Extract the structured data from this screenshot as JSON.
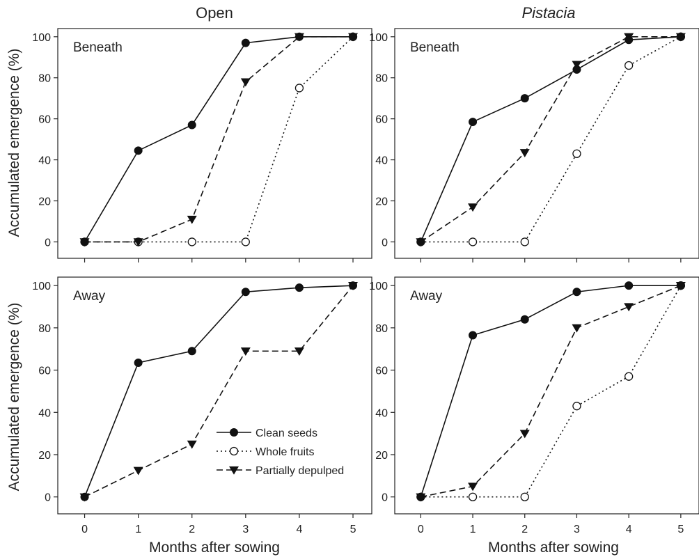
{
  "figure": {
    "columns": [
      "Open",
      "Pistacia"
    ],
    "column_italic": [
      false,
      true
    ],
    "ylabel": "Accumulated emergence (%)",
    "xlabel": "Months after sowing"
  },
  "legend": {
    "items": [
      {
        "key": "clean",
        "label": "Clean seeds"
      },
      {
        "key": "whole",
        "label": "Whole fruits"
      },
      {
        "key": "partial",
        "label": "Partially depulped"
      }
    ]
  },
  "chart_data": [
    {
      "type": "line",
      "column": "Open",
      "panel_label": "Beneath",
      "xlim": [
        -0.5,
        5.35
      ],
      "ylim": [
        -8,
        104
      ],
      "xticks": [
        0,
        1,
        2,
        3,
        4,
        5
      ],
      "yticks": [
        0,
        20,
        40,
        60,
        80,
        100
      ],
      "x": [
        0,
        1,
        2,
        3,
        4,
        5
      ],
      "series": [
        {
          "key": "clean",
          "name": "Clean seeds",
          "values": [
            0,
            44.5,
            57,
            97,
            100,
            100
          ]
        },
        {
          "key": "whole",
          "name": "Whole fruits",
          "values": [
            0,
            0,
            0,
            0,
            75,
            100
          ]
        },
        {
          "key": "partial",
          "name": "Partially depulped",
          "values": [
            0,
            0,
            11,
            78,
            100,
            100
          ]
        }
      ]
    },
    {
      "type": "line",
      "column": "Pistacia",
      "panel_label": "Beneath",
      "xlim": [
        -0.5,
        5.35
      ],
      "ylim": [
        -8,
        104
      ],
      "xticks": [
        0,
        1,
        2,
        3,
        4,
        5
      ],
      "yticks": [
        0,
        20,
        40,
        60,
        80,
        100
      ],
      "x": [
        0,
        1,
        2,
        3,
        4,
        5
      ],
      "series": [
        {
          "key": "clean",
          "name": "Clean seeds",
          "values": [
            0,
            58.5,
            70,
            84,
            98.5,
            100
          ]
        },
        {
          "key": "whole",
          "name": "Whole fruits",
          "values": [
            0,
            0,
            0,
            43,
            86,
            100
          ]
        },
        {
          "key": "partial",
          "name": "Partially depulped",
          "values": [
            0,
            17,
            43.5,
            86.5,
            100,
            100
          ]
        }
      ]
    },
    {
      "type": "line",
      "column": "Open",
      "panel_label": "Away",
      "xlim": [
        -0.5,
        5.35
      ],
      "ylim": [
        -8,
        104
      ],
      "xticks": [
        0,
        1,
        2,
        3,
        4,
        5
      ],
      "yticks": [
        0,
        20,
        40,
        60,
        80,
        100
      ],
      "x": [
        0,
        1,
        2,
        3,
        4,
        5
      ],
      "legend": "bottom-right",
      "series": [
        {
          "key": "clean",
          "name": "Clean seeds",
          "values": [
            0,
            63.5,
            69,
            97,
            99,
            100
          ]
        },
        {
          "key": "partial",
          "name": "Partially depulped",
          "values": [
            0,
            12.5,
            25,
            69,
            69,
            100
          ]
        }
      ]
    },
    {
      "type": "line",
      "column": "Pistacia",
      "panel_label": "Away",
      "xlim": [
        -0.5,
        5.35
      ],
      "ylim": [
        -8,
        104
      ],
      "xticks": [
        0,
        1,
        2,
        3,
        4,
        5
      ],
      "yticks": [
        0,
        20,
        40,
        60,
        80,
        100
      ],
      "x": [
        0,
        1,
        2,
        3,
        4,
        5
      ],
      "series": [
        {
          "key": "clean",
          "name": "Clean seeds",
          "values": [
            0,
            76.5,
            84,
            97,
            100,
            100
          ]
        },
        {
          "key": "whole",
          "name": "Whole fruits",
          "values": [
            0,
            0,
            0,
            43,
            57,
            100
          ]
        },
        {
          "key": "partial",
          "name": "Partially depulped",
          "values": [
            0,
            5,
            30,
            80,
            90,
            100
          ]
        }
      ]
    }
  ]
}
